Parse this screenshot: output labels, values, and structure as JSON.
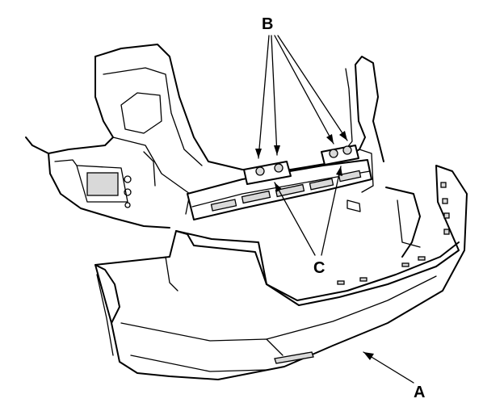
{
  "labels": {
    "a": "A",
    "b": "B",
    "c": "C"
  },
  "colors": {
    "line": "#000000",
    "background": "#ffffff"
  }
}
